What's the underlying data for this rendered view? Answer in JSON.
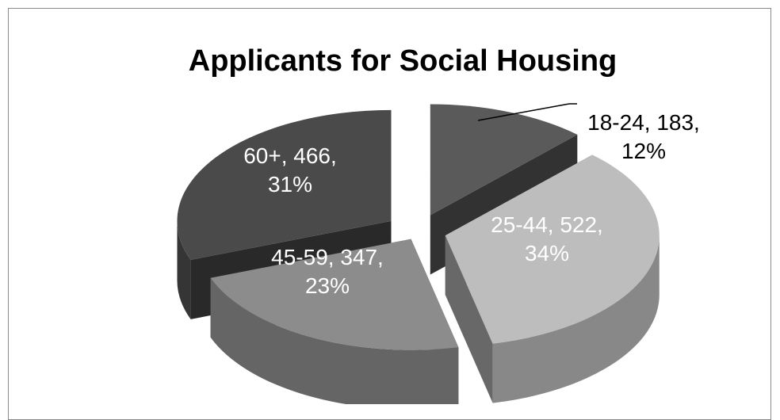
{
  "chart_data": {
    "type": "pie",
    "style": "3d-exploded",
    "title": "Applicants for Social Housing",
    "slices": [
      {
        "category": "18-24",
        "value": 183,
        "percent": 12,
        "color": "#5a5a5a",
        "label_lines": [
          "18-24, 183,",
          "12%"
        ],
        "label_color": "#000000"
      },
      {
        "category": "25-44",
        "value": 522,
        "percent": 34,
        "color": "#bdbdbd",
        "label_lines": [
          "25-44, 522,",
          "34%"
        ],
        "label_color": "#ffffff"
      },
      {
        "category": "45-59",
        "value": 347,
        "percent": 23,
        "color": "#8c8c8c",
        "label_lines": [
          "45-59, 347,",
          "23%"
        ],
        "label_color": "#ffffff"
      },
      {
        "category": "60+",
        "value": 466,
        "percent": 31,
        "color": "#4a4a4a",
        "label_lines": [
          "60+, 466,",
          "31%"
        ],
        "label_color": "#ffffff"
      }
    ],
    "legend": "none"
  }
}
